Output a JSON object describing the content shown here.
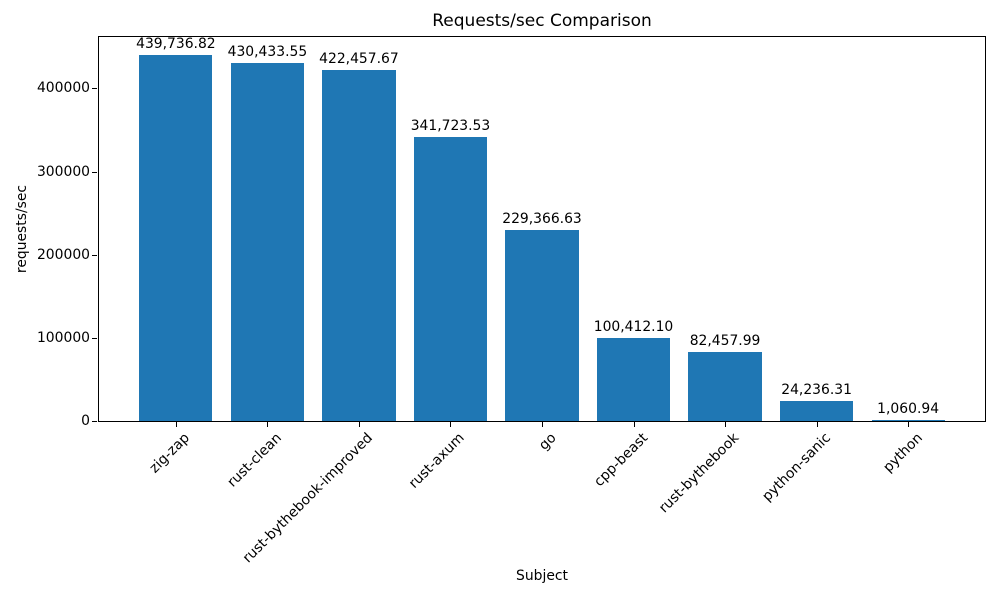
{
  "chart_data": {
    "type": "bar",
    "title": "Requests/sec Comparison",
    "xlabel": "Subject",
    "ylabel": "requests/sec",
    "categories": [
      "zig-zap",
      "rust-clean",
      "rust-bythebook-improved",
      "rust-axum",
      "go",
      "cpp-beast",
      "rust-bythebook",
      "python-sanic",
      "python"
    ],
    "values": [
      439736.82,
      430433.55,
      422457.67,
      341723.53,
      229366.63,
      100412.1,
      82457.99,
      24236.31,
      1060.94
    ],
    "bar_labels": [
      "439,736.82",
      "430,433.55",
      "422,457.67",
      "341,723.53",
      "229,366.63",
      "100,412.10",
      "82,457.99",
      "24,236.31",
      "1,060.94"
    ],
    "yticks": [
      0,
      100000,
      200000,
      300000,
      400000
    ],
    "ytick_labels": [
      "0",
      "100000",
      "200000",
      "300000",
      "400000"
    ],
    "ylim": [
      0,
      461724
    ],
    "xlim": [
      -0.84,
      8.84
    ],
    "bar_width": 0.8,
    "x_tick_rotation": 45,
    "bar_color": "#1f77b4",
    "text_color": "#000000",
    "spine_color": "#000000",
    "grid": false,
    "legend": false
  }
}
